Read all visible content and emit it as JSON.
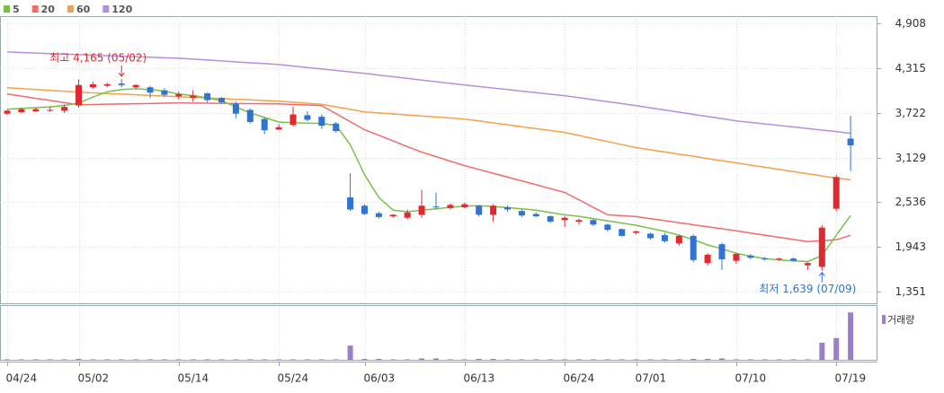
{
  "chart_data": {
    "type": "candlestick",
    "categories": [
      "04/24",
      null,
      null,
      null,
      null,
      "05/02",
      null,
      null,
      null,
      null,
      null,
      null,
      "05/14",
      null,
      null,
      null,
      null,
      null,
      null,
      "05/24",
      null,
      null,
      null,
      null,
      null,
      "06/03",
      null,
      null,
      null,
      null,
      null,
      null,
      "06/13",
      null,
      null,
      null,
      null,
      null,
      null,
      "06/24",
      null,
      null,
      null,
      null,
      "07/01",
      null,
      null,
      null,
      null,
      null,
      null,
      "07/10",
      null,
      null,
      null,
      null,
      null,
      null,
      "07/19",
      null
    ],
    "open": [
      3710,
      3730,
      3740,
      3750,
      3750,
      3820,
      4060,
      4080,
      4110,
      4060,
      4060,
      4020,
      3940,
      3920,
      3980,
      3920,
      3840,
      3760,
      3640,
      3500,
      3560,
      3690,
      3670,
      3580,
      2600,
      2490,
      2390,
      2350,
      2330,
      2370,
      2480,
      2460,
      2470,
      2490,
      2370,
      2470,
      2420,
      2380,
      2350,
      2300,
      2280,
      2300,
      2240,
      2180,
      2130,
      2120,
      2100,
      1990,
      2090,
      1730,
      1980,
      1760,
      1830,
      1790,
      1780,
      1790,
      1700,
      1680,
      2450,
      3380
    ],
    "high": [
      3760,
      3790,
      3790,
      3800,
      3830,
      4165,
      4130,
      4120,
      4170,
      4100,
      4080,
      4050,
      4000,
      4020,
      3990,
      3930,
      3870,
      3780,
      3660,
      3570,
      3800,
      3740,
      3700,
      3600,
      2920,
      2510,
      2410,
      2380,
      2440,
      2700,
      2660,
      2520,
      2530,
      2500,
      2510,
      2490,
      2440,
      2400,
      2360,
      2350,
      2320,
      2310,
      2250,
      2190,
      2160,
      2130,
      2130,
      2100,
      2110,
      1860,
      2000,
      1870,
      1850,
      1810,
      1800,
      1800,
      1740,
      2230,
      2900,
      3680
    ],
    "low": [
      3690,
      3720,
      3730,
      3730,
      3720,
      3790,
      4040,
      4060,
      4060,
      4040,
      3920,
      3930,
      3900,
      3870,
      3860,
      3840,
      3650,
      3580,
      3440,
      3490,
      3540,
      3610,
      3510,
      3460,
      2420,
      2370,
      2320,
      2330,
      2310,
      2330,
      2440,
      2440,
      2460,
      2350,
      2280,
      2410,
      2340,
      2340,
      2260,
      2210,
      2240,
      2220,
      2150,
      2080,
      2110,
      2040,
      2000,
      1960,
      1740,
      1700,
      1639,
      1720,
      1780,
      1760,
      1760,
      1750,
      1640,
      1630,
      2420,
      2950
    ],
    "close": [
      3750,
      3770,
      3770,
      3760,
      3800,
      4090,
      4100,
      4100,
      4090,
      4090,
      3990,
      3960,
      3970,
      3950,
      3890,
      3860,
      3710,
      3600,
      3490,
      3530,
      3700,
      3630,
      3550,
      3480,
      2440,
      2380,
      2340,
      2370,
      2400,
      2490,
      2470,
      2500,
      2510,
      2370,
      2490,
      2440,
      2360,
      2350,
      2280,
      2330,
      2300,
      2240,
      2170,
      2090,
      2150,
      2060,
      2020,
      2090,
      1770,
      1840,
      1780,
      1850,
      1800,
      1780,
      1790,
      1760,
      1730,
      2200,
      2870,
      3290
    ],
    "up_color": "#e0282e",
    "down_color": "#2f74d0",
    "moving_averages": [
      {
        "name": "5",
        "color": "#79c04a",
        "values": [
          3770,
          3780,
          3790,
          3800,
          3820,
          3850,
          3930,
          4000,
          4030,
          4040,
          4030,
          4010,
          3970,
          3950,
          3920,
          3880,
          3800,
          3720,
          3660,
          3600,
          3590,
          3585,
          3580,
          3556,
          3300,
          2900,
          2600,
          2430,
          2410,
          2430,
          2450,
          2470,
          2485,
          2490,
          2480,
          2465,
          2450,
          2430,
          2400,
          2370,
          2350,
          2320,
          2290,
          2260,
          2230,
          2190,
          2150,
          2100,
          2040,
          1970,
          1920,
          1860,
          1820,
          1790,
          1770,
          1760,
          1750,
          1830,
          2100,
          2360
        ]
      },
      {
        "name": "20",
        "color": "#f26b6b",
        "values": [
          3971,
          3943,
          3914,
          3886,
          3857,
          3829,
          3832,
          3836,
          3839,
          3842,
          3845,
          3849,
          3852,
          3850,
          3849,
          3847,
          3845,
          3843,
          3842,
          3840,
          3832,
          3825,
          3817,
          3710,
          3604,
          3497,
          3423,
          3349,
          3274,
          3200,
          3141,
          3081,
          3022,
          2971,
          2920,
          2869,
          2819,
          2768,
          2717,
          2666,
          2568,
          2469,
          2370,
          2358,
          2346,
          2319,
          2292,
          2265,
          2238,
          2211,
          2184,
          2157,
          2128,
          2100,
          2071,
          2043,
          2014,
          2026,
          2038,
          2097
        ]
      },
      {
        "name": "60",
        "color": "#f5a04a",
        "values": [
          4054,
          4042,
          4030,
          4019,
          4007,
          3995,
          3986,
          3978,
          3969,
          3961,
          3952,
          3944,
          3935,
          3927,
          3918,
          3910,
          3901,
          3893,
          3884,
          3876,
          3862,
          3848,
          3834,
          3800,
          3767,
          3734,
          3720,
          3707,
          3693,
          3680,
          3666,
          3653,
          3639,
          3614,
          3588,
          3563,
          3537,
          3512,
          3486,
          3461,
          3421,
          3380,
          3340,
          3300,
          3260,
          3231,
          3202,
          3173,
          3145,
          3116,
          3087,
          3058,
          3029,
          3000,
          2971,
          2943,
          2914,
          2885,
          2856,
          2833
        ]
      },
      {
        "name": "120",
        "color": "#b58de0",
        "values": [
          4528,
          4521,
          4514,
          4507,
          4500,
          4493,
          4486,
          4479,
          4472,
          4465,
          4458,
          4451,
          4445,
          4433,
          4421,
          4409,
          4397,
          4385,
          4374,
          4362,
          4342,
          4322,
          4302,
          4283,
          4264,
          4244,
          4222,
          4200,
          4178,
          4156,
          4134,
          4112,
          4090,
          4070,
          4050,
          4030,
          4009,
          3989,
          3968,
          3948,
          3922,
          3896,
          3870,
          3843,
          3817,
          3788,
          3759,
          3730,
          3701,
          3672,
          3643,
          3615,
          3595,
          3575,
          3555,
          3534,
          3514,
          3493,
          3473,
          3450
        ]
      }
    ],
    "volume": {
      "name": "거래량",
      "color": "#9a80c8",
      "values": [
        1,
        1,
        1,
        1,
        1,
        2,
        1,
        1,
        1,
        1,
        1,
        1,
        1,
        1,
        1,
        1,
        1,
        1,
        1,
        1,
        1,
        1,
        1,
        1,
        30,
        2,
        2,
        1,
        1,
        3,
        3,
        1,
        1,
        2,
        2,
        1,
        1,
        1,
        1,
        1,
        1,
        1,
        1,
        1,
        1,
        1,
        1,
        1,
        2,
        2,
        3,
        1,
        1,
        1,
        1,
        1,
        1,
        36,
        46,
        100
      ],
      "ylim": [
        0,
        108
      ]
    },
    "ylim": [
      1197,
      5003
    ],
    "yticks": [
      {
        "value": 1351,
        "label": "1,351"
      },
      {
        "value": 1943,
        "label": "1,943"
      },
      {
        "value": 2536,
        "label": "2,536"
      },
      {
        "value": 3129,
        "label": "3,129"
      },
      {
        "value": 3722,
        "label": "3,722"
      },
      {
        "value": 4315,
        "label": "4,315"
      },
      {
        "value": 4908,
        "label": "4,908"
      }
    ],
    "annotations": {
      "high": "최고 4,165 (05/02)",
      "low": "최저 1,639 (07/09)"
    },
    "grid": true
  }
}
